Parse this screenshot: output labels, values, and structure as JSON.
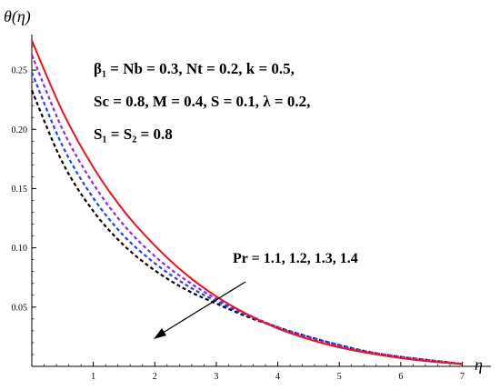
{
  "chart_data": {
    "type": "line",
    "ylabel": "θ(η)",
    "xlabel": "η",
    "xlim": [
      0,
      7.2
    ],
    "ylim": [
      0,
      0.28
    ],
    "xticks": [
      "1",
      "2",
      "3",
      "4",
      "5",
      "6",
      "7"
    ],
    "yticks": [
      "0.05",
      "0.10",
      "0.15",
      "0.20",
      "0.25"
    ],
    "grid": false,
    "annotations": {
      "params_line1": "β₁ = Nb = 0.3, Nt = 0.2, k = 0.5,",
      "params_line2": "Sc = 0.8, M = 0.4, S = 0.1, λ = 0.2,",
      "params_line3": "S₁ = S₂ = 0.8",
      "arrow_label": "Pr = 1.1, 1.2, 1.3, 1.4"
    },
    "series": [
      {
        "color": "#e8141e",
        "dash": "solid",
        "x": [
          0,
          0.5,
          1,
          1.5,
          2,
          2.5,
          3,
          3.5,
          4,
          4.5,
          5,
          5.5,
          6,
          6.5,
          7
        ],
        "y": [
          0.275,
          0.215,
          0.168,
          0.131,
          0.102,
          0.078,
          0.059,
          0.044,
          0.032,
          0.023,
          0.016,
          0.011,
          0.007,
          0.004,
          0.002
        ]
      },
      {
        "color": "#8a2be2",
        "dash": "dashed",
        "x": [
          0,
          0.5,
          1,
          1.5,
          2,
          2.5,
          3,
          3.5,
          4,
          4.5,
          5,
          5.5,
          6,
          6.5,
          7
        ],
        "y": [
          0.263,
          0.2,
          0.154,
          0.119,
          0.093,
          0.073,
          0.057,
          0.044,
          0.033,
          0.024,
          0.017,
          0.012,
          0.008,
          0.005,
          0.002
        ]
      },
      {
        "color": "#1f3fff",
        "dash": "dashed",
        "x": [
          0,
          0.5,
          1,
          1.5,
          2,
          2.5,
          3,
          3.5,
          4,
          4.5,
          5,
          5.5,
          6,
          6.5,
          7
        ],
        "y": [
          0.248,
          0.186,
          0.142,
          0.11,
          0.087,
          0.069,
          0.055,
          0.043,
          0.033,
          0.025,
          0.018,
          0.012,
          0.008,
          0.005,
          0.002
        ]
      },
      {
        "color": "#000000",
        "dash": "dashed",
        "x": [
          0,
          0.5,
          1,
          1.5,
          2,
          2.5,
          3,
          3.5,
          4,
          4.5,
          5,
          5.5,
          6,
          6.5,
          7
        ],
        "y": [
          0.233,
          0.172,
          0.131,
          0.102,
          0.081,
          0.065,
          0.053,
          0.042,
          0.033,
          0.025,
          0.018,
          0.012,
          0.008,
          0.005,
          0.002
        ]
      }
    ]
  }
}
